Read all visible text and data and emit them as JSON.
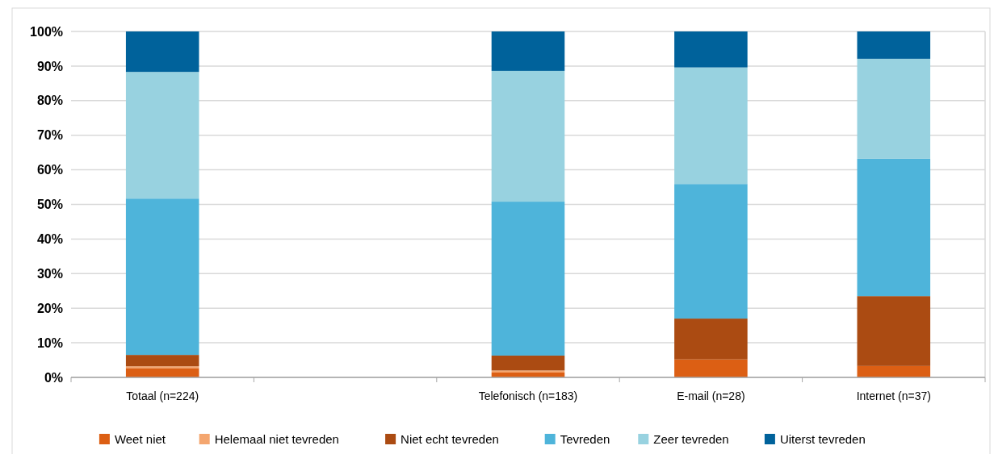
{
  "chart_data": {
    "type": "bar",
    "stacked": true,
    "categories": [
      "Totaal (n=224)",
      null,
      "Telefonisch (n=183)",
      "E-mail (n=28)",
      "Internet (n=37)"
    ],
    "series": [
      {
        "name": "Weet niet",
        "color": "#dc5f14",
        "values": [
          2.7,
          null,
          1.4,
          5.2,
          3.3
        ]
      },
      {
        "name": "Helemaal niet tevreden",
        "color": "#f4a66f",
        "values": [
          0.5,
          null,
          0.6,
          0,
          0
        ]
      },
      {
        "name": "Niet echt tevreden",
        "color": "#ab4b12",
        "values": [
          3.3,
          null,
          4.3,
          11.8,
          20.2
        ]
      },
      {
        "name": "Tevreden",
        "color": "#4eb4da",
        "values": [
          45.2,
          null,
          44.5,
          38.9,
          39.7
        ]
      },
      {
        "name": "Zeer tevreden",
        "color": "#98d2e0",
        "values": [
          36.6,
          null,
          37.8,
          33.7,
          28.9
        ]
      },
      {
        "name": "Uiterst tevreden",
        "color": "#00629b",
        "values": [
          11.7,
          null,
          11.4,
          10.4,
          7.9
        ]
      }
    ],
    "ylim": [
      0,
      100
    ],
    "yticks": [
      {
        "value": 0,
        "label": "0%"
      },
      {
        "value": 10,
        "label": "10%"
      },
      {
        "value": 20,
        "label": "20%"
      },
      {
        "value": 30,
        "label": "30%"
      },
      {
        "value": 40,
        "label": "40%"
      },
      {
        "value": 50,
        "label": "50%"
      },
      {
        "value": 60,
        "label": "60%"
      },
      {
        "value": 70,
        "label": "70%"
      },
      {
        "value": 80,
        "label": "80%"
      },
      {
        "value": 90,
        "label": "90%"
      },
      {
        "value": 100,
        "label": "100%"
      }
    ],
    "grid": "y",
    "legend": "bottom"
  }
}
